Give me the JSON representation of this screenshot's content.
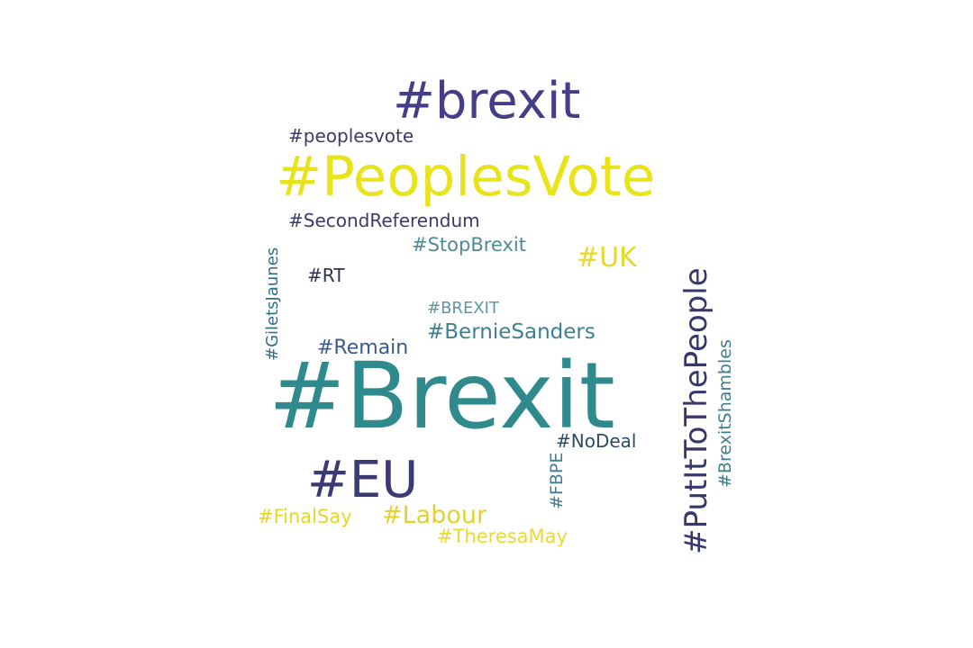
{
  "word_cloud": {
    "words": [
      {
        "text": "#brexit",
        "color": "#433e85"
      },
      {
        "text": "#peoplesvote",
        "color": "#3b3b68"
      },
      {
        "text": "#PeoplesVote",
        "color": "#e8e419"
      },
      {
        "text": "#SecondReferendum",
        "color": "#3a3a6e"
      },
      {
        "text": "#StopBrexit",
        "color": "#4f8a96"
      },
      {
        "text": "#UK",
        "color": "#e8d82a"
      },
      {
        "text": "#RT",
        "color": "#2f2f55"
      },
      {
        "text": "#BREXIT",
        "color": "#5e97a0"
      },
      {
        "text": "#BernieSanders",
        "color": "#3f7f93"
      },
      {
        "text": "#Remain",
        "color": "#3c5a8c"
      },
      {
        "text": "#Brexit",
        "color": "#2e8a8c"
      },
      {
        "text": "#NoDeal",
        "color": "#2c4a6b"
      },
      {
        "text": "#EU",
        "color": "#3b3a72"
      },
      {
        "text": "#FinalSay",
        "color": "#e6d62a"
      },
      {
        "text": "#Labour",
        "color": "#e3d22c"
      },
      {
        "text": "#TheresaMay",
        "color": "#ead934"
      },
      {
        "text": "#GiletsJaunes",
        "color": "#2f6d88"
      },
      {
        "text": "#PutItToThePeople",
        "color": "#36386a"
      },
      {
        "text": "#FBPE",
        "color": "#3f7c96"
      },
      {
        "text": "#BrexitShambles",
        "color": "#3f7d92"
      }
    ]
  }
}
